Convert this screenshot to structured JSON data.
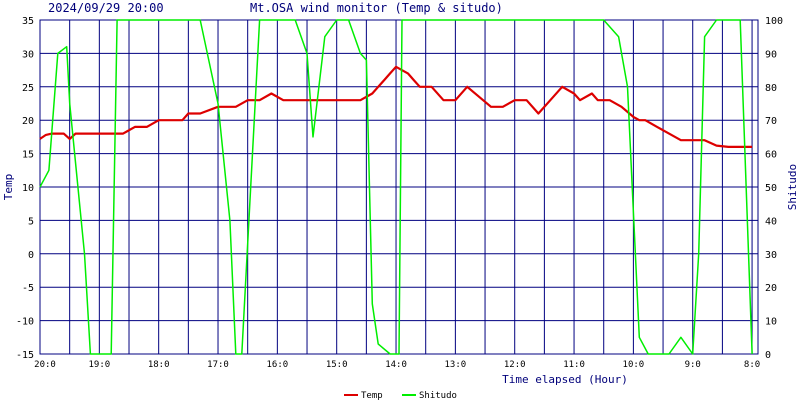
{
  "chart_data": {
    "type": "line",
    "datetime": "2024/09/29 20:00",
    "title": "Mt.OSA wind monitor (Temp & situdo)",
    "xlabel": "Time elapsed (Hour)",
    "ylabel_left": "Temp",
    "ylabel_right": "Shitudo",
    "ylim_left": [
      -15,
      35
    ],
    "ylim_right": [
      0,
      100
    ],
    "yticks_left": [
      "35",
      "30",
      "25",
      "20",
      "15",
      "10",
      "5",
      "0",
      "-5",
      "-10",
      "-15"
    ],
    "yticks_right": [
      "100",
      "90",
      "80",
      "70",
      "60",
      "50",
      "40",
      "30",
      "20",
      "10",
      "0"
    ],
    "x_tick_labels": [
      "20:0",
      "19:0",
      "18:0",
      "17:0",
      "16:0",
      "15:0",
      "14:0",
      "13:0",
      "12:0",
      "11:0",
      "10:0",
      "9:0",
      "8:0"
    ],
    "x_tick_hours": [
      0,
      1,
      2,
      3,
      4,
      5,
      6,
      7,
      8,
      9,
      10,
      11,
      12
    ],
    "grid": true,
    "legend_position": "bottom-center",
    "series": [
      {
        "name": "Temp",
        "axis": "left",
        "color": "#dd0000",
        "x": [
          0.0,
          0.1,
          0.2,
          0.3,
          0.4,
          0.5,
          0.6,
          0.7,
          0.8,
          0.9,
          1.0,
          1.2,
          1.4,
          1.6,
          1.8,
          2.0,
          2.2,
          2.4,
          2.5,
          2.7,
          3.0,
          3.2,
          3.3,
          3.5,
          3.7,
          3.9,
          4.1,
          4.2,
          4.4,
          4.5,
          4.6,
          4.7,
          4.8,
          5.0,
          5.2,
          5.4,
          5.6,
          5.7,
          5.8,
          5.9,
          6.0,
          6.2,
          6.3,
          6.4,
          6.5,
          6.6,
          6.8,
          7.0,
          7.2,
          7.4,
          7.6,
          7.8,
          8.0,
          8.2,
          8.4,
          8.6,
          8.8,
          9.0,
          9.1,
          9.3,
          9.4,
          9.6,
          9.8,
          10.0,
          10.1,
          10.2,
          10.4,
          10.6,
          10.8,
          11.0,
          11.2,
          11.4,
          11.6,
          11.8,
          12.0
        ],
        "values": [
          17.2,
          17.8,
          18.0,
          18.0,
          18.0,
          17.2,
          18.0,
          18.0,
          18.0,
          18.0,
          18.0,
          18.0,
          18.0,
          19.0,
          19.0,
          20.0,
          20.0,
          20.0,
          21.0,
          21.0,
          22.0,
          22.0,
          22.0,
          23.0,
          23.0,
          24.0,
          23.0,
          23.0,
          23.0,
          23.0,
          23.0,
          23.0,
          23.0,
          23.0,
          23.0,
          23.0,
          24.0,
          25.0,
          26.0,
          27.0,
          28.0,
          27.0,
          26.0,
          25.0,
          25.0,
          25.0,
          23.0,
          23.0,
          25.0,
          23.5,
          22.0,
          22.0,
          23.0,
          23.0,
          21.0,
          23.0,
          25.0,
          24.0,
          23.0,
          24.0,
          23.0,
          23.0,
          22.0,
          20.5,
          20.0,
          20.0,
          19.0,
          18.0,
          17.0,
          17.0,
          17.0,
          16.2,
          16.0,
          16.0,
          16.0
        ]
      },
      {
        "name": "Shitudo",
        "axis": "right",
        "color": "#00ee00",
        "x": [
          0.0,
          0.15,
          0.3,
          0.45,
          0.5,
          0.75,
          0.85,
          1.0,
          1.1,
          1.2,
          1.3,
          2.0,
          2.5,
          2.7,
          3.0,
          3.2,
          3.3,
          3.4,
          3.7,
          4.1,
          4.3,
          4.5,
          4.6,
          4.8,
          5.0,
          5.2,
          5.4,
          5.5,
          5.6,
          5.7,
          5.9,
          6.0,
          6.05,
          6.1,
          6.2,
          6.3,
          9.5,
          9.75,
          9.9,
          10.1,
          10.25,
          10.4,
          10.6,
          10.8,
          11.0,
          11.1,
          11.2,
          11.4,
          11.6,
          11.7,
          11.8,
          12.0
        ],
        "values": [
          50,
          55,
          90,
          92,
          75,
          30,
          0,
          0,
          0,
          0,
          100,
          100,
          100,
          100,
          75,
          40,
          0,
          0,
          100,
          100,
          100,
          90,
          65,
          95,
          100,
          100,
          90,
          88,
          15,
          3,
          0,
          0,
          0,
          100,
          100,
          100,
          100,
          95,
          80,
          5,
          0,
          0,
          0,
          5,
          0,
          30,
          95,
          100,
          100,
          100,
          100,
          0
        ]
      }
    ]
  }
}
